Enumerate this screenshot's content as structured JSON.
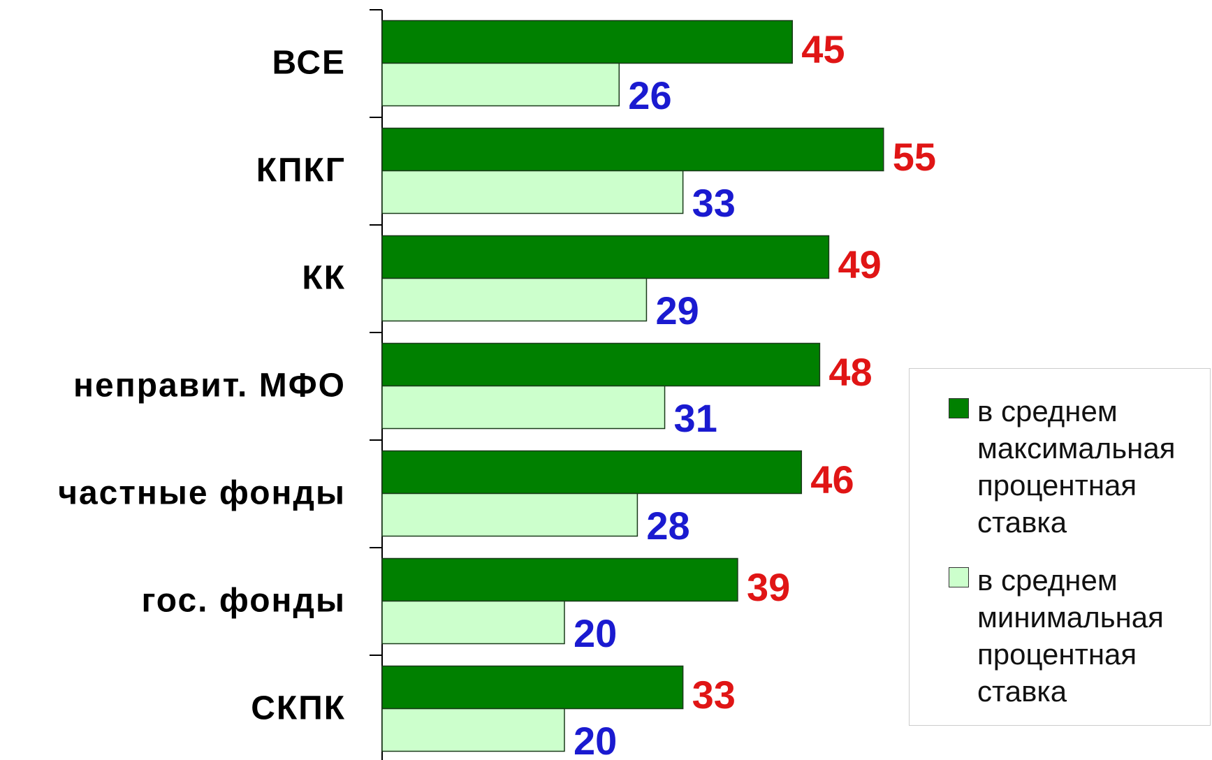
{
  "chart_data": {
    "type": "bar",
    "orientation": "horizontal",
    "categories": [
      "ВСЕ",
      "КПКГ",
      "КК",
      "неправит. МФО",
      "частные фонды",
      "гос. фонды",
      "СКПК"
    ],
    "series": [
      {
        "name": "в среднем максимальная процентная ставка",
        "color": "#008000",
        "label_color": "#e01515",
        "values": [
          45,
          55,
          49,
          48,
          46,
          39,
          33
        ]
      },
      {
        "name": "в среднем минимальная процентная ставка",
        "color": "#ccffcc",
        "label_color": "#1a1ad0",
        "values": [
          26,
          33,
          29,
          31,
          28,
          20,
          20
        ]
      }
    ],
    "xlim": [
      0,
      60
    ],
    "legend": "right"
  }
}
